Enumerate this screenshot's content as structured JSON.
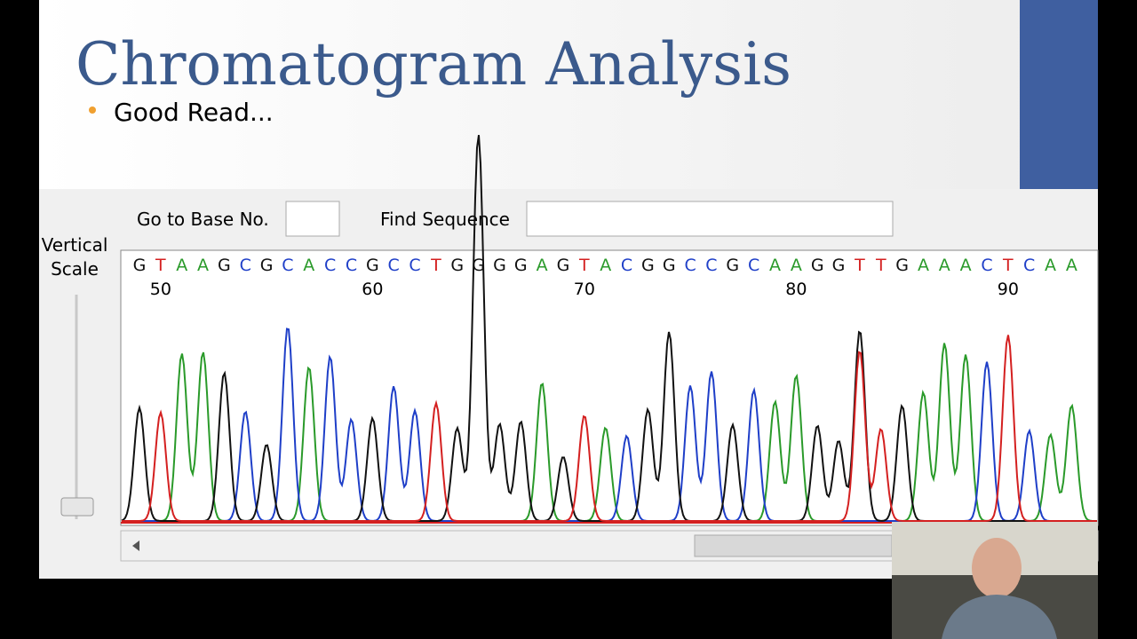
{
  "slide": {
    "title": "Chromatogram Analysis",
    "bullet": "Good Read..."
  },
  "toolbar": {
    "go_to_base": "Go to Base No.",
    "find_sequence": "Find Sequence"
  },
  "vertical_scale": [
    "Vertical",
    "Scale"
  ],
  "chromatogram": {
    "sequence": [
      "G",
      "T",
      "A",
      "A",
      "G",
      "C",
      "G",
      "C",
      "A",
      "C",
      "C",
      "G",
      "C",
      "C",
      "T",
      "G",
      "G",
      "G",
      "G",
      "A",
      "G",
      "T",
      "A",
      "C",
      "G",
      "G",
      "C",
      "C",
      "G",
      "C",
      "A",
      "A",
      "G",
      "G",
      "T",
      "T",
      "G",
      "A",
      "A",
      "A",
      "C",
      "T",
      "C",
      "A",
      "A"
    ],
    "positions": [
      50,
      60,
      70,
      80,
      90
    ],
    "base_colors": {
      "A": "#2a9a2a",
      "C": "#1f3fc8",
      "G": "#111111",
      "T": "#d42020"
    }
  }
}
